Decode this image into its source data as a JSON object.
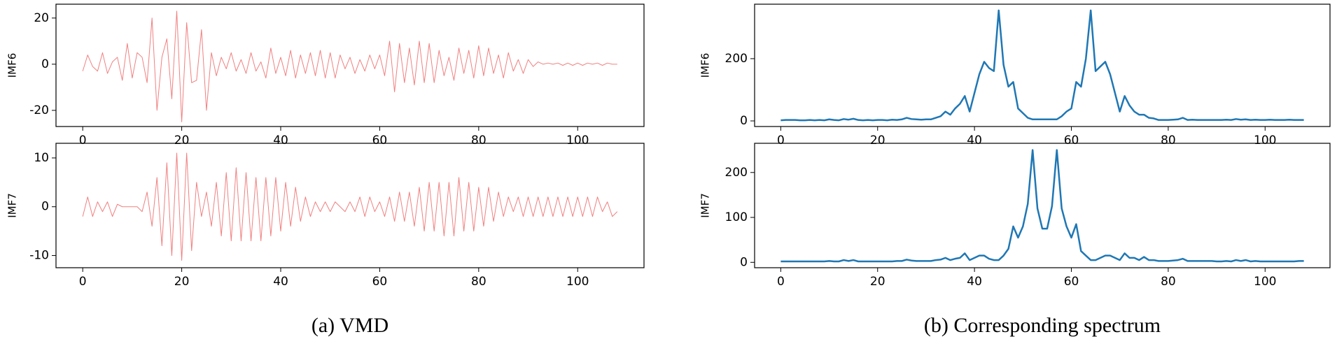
{
  "captions": [
    "(a) VMD",
    "(b) Corresponding spectrum"
  ],
  "chart_data": [
    {
      "type": "line",
      "ylabel": "IMF6",
      "color": "#f08080",
      "x": [
        0,
        1,
        2,
        3,
        4,
        5,
        6,
        7,
        8,
        9,
        10,
        11,
        12,
        13,
        14,
        15,
        16,
        17,
        18,
        19,
        20,
        21,
        22,
        23,
        24,
        25,
        26,
        27,
        28,
        29,
        30,
        31,
        32,
        33,
        34,
        35,
        36,
        37,
        38,
        39,
        40,
        41,
        42,
        43,
        44,
        45,
        46,
        47,
        48,
        49,
        50,
        51,
        52,
        53,
        54,
        55,
        56,
        57,
        58,
        59,
        60,
        61,
        62,
        63,
        64,
        65,
        66,
        67,
        68,
        69,
        70,
        71,
        72,
        73,
        74,
        75,
        76,
        77,
        78,
        79,
        80,
        81,
        82,
        83,
        84,
        85,
        86,
        87,
        88,
        89,
        90,
        91,
        92,
        93,
        94,
        95,
        96,
        97,
        98,
        99,
        100,
        101,
        102,
        103,
        104,
        105,
        106,
        107,
        108
      ],
      "values": [
        -3,
        4,
        -1,
        -3,
        5,
        -4,
        1,
        3,
        -7,
        9,
        -6,
        5,
        3,
        -8,
        20,
        -20,
        3,
        11,
        -15,
        23,
        -25,
        18,
        -8,
        -7,
        15,
        -20,
        5,
        -5,
        3,
        -2,
        5,
        -3,
        2,
        -4,
        5,
        -3,
        1,
        -6,
        7,
        -4,
        3,
        -5,
        6,
        -6,
        4,
        -4,
        5,
        -5,
        6,
        -6,
        5,
        -6,
        4,
        -2,
        3,
        -4,
        2,
        -3,
        4,
        -2,
        4,
        -5,
        10,
        -12,
        9,
        -8,
        7,
        -9,
        10,
        -8,
        9,
        -8,
        6,
        -5,
        3,
        -7,
        7,
        -4,
        6,
        -6,
        8,
        -5,
        7,
        -4,
        4,
        -6,
        5,
        -3,
        2,
        -4,
        2,
        -1,
        1,
        0,
        0.5,
        0,
        0.5,
        -0.5,
        0.5,
        -0.5,
        0.5,
        -0.5,
        0.5,
        0,
        0.5,
        -0.5,
        0.5,
        0,
        0
      ],
      "xlim": [
        -5.4,
        113.4
      ],
      "xticks": [
        0,
        20,
        40,
        60,
        80,
        100
      ],
      "ylim": [
        -27,
        26
      ],
      "yticks": [
        -20,
        0,
        20
      ]
    },
    {
      "type": "line",
      "ylabel": "IMF7",
      "color": "#f08080",
      "x": [
        0,
        1,
        2,
        3,
        4,
        5,
        6,
        7,
        8,
        9,
        10,
        11,
        12,
        13,
        14,
        15,
        16,
        17,
        18,
        19,
        20,
        21,
        22,
        23,
        24,
        25,
        26,
        27,
        28,
        29,
        30,
        31,
        32,
        33,
        34,
        35,
        36,
        37,
        38,
        39,
        40,
        41,
        42,
        43,
        44,
        45,
        46,
        47,
        48,
        49,
        50,
        51,
        52,
        53,
        54,
        55,
        56,
        57,
        58,
        59,
        60,
        61,
        62,
        63,
        64,
        65,
        66,
        67,
        68,
        69,
        70,
        71,
        72,
        73,
        74,
        75,
        76,
        77,
        78,
        79,
        80,
        81,
        82,
        83,
        84,
        85,
        86,
        87,
        88,
        89,
        90,
        91,
        92,
        93,
        94,
        95,
        96,
        97,
        98,
        99,
        100,
        101,
        102,
        103,
        104,
        105,
        106,
        107,
        108
      ],
      "values": [
        -2,
        2,
        -2,
        1,
        -1,
        1,
        -2,
        0.5,
        0,
        0,
        0,
        0,
        -1,
        3,
        -4,
        6,
        -8,
        9,
        -10,
        11,
        -11,
        11,
        -9,
        5,
        -2,
        3,
        -4,
        5,
        -6,
        7,
        -7,
        8,
        -7,
        7,
        -7,
        6,
        -7,
        6,
        -6,
        6,
        -5,
        5,
        -4,
        4,
        -3,
        2,
        -2,
        1,
        -1,
        1,
        -1,
        1,
        0,
        -1,
        1,
        -1,
        2,
        -2,
        2,
        -1,
        1,
        -2,
        2,
        -3,
        3,
        -3,
        3,
        -4,
        4,
        -5,
        5,
        -5,
        5,
        -6,
        5,
        -6,
        6,
        -5,
        5,
        -5,
        4,
        -4,
        4,
        -3,
        3,
        -2,
        2,
        -1,
        2,
        -2,
        2,
        -2,
        2,
        -2,
        2,
        -2,
        2,
        -2,
        2,
        -2,
        2,
        -2,
        2,
        -2,
        2,
        -1,
        1,
        -2,
        -1
      ],
      "xlim": [
        -5.4,
        113.4
      ],
      "xticks": [
        0,
        20,
        40,
        60,
        80,
        100
      ],
      "ylim": [
        -12.5,
        13
      ],
      "yticks": [
        -10,
        0,
        10
      ]
    },
    {
      "type": "line",
      "ylabel": "IMF6",
      "color": "#1f77b4",
      "x": [
        0,
        1,
        2,
        3,
        4,
        5,
        6,
        7,
        8,
        9,
        10,
        11,
        12,
        13,
        14,
        15,
        16,
        17,
        18,
        19,
        20,
        21,
        22,
        23,
        24,
        25,
        26,
        27,
        28,
        29,
        30,
        31,
        32,
        33,
        34,
        35,
        36,
        37,
        38,
        39,
        40,
        41,
        42,
        43,
        44,
        45,
        46,
        47,
        48,
        49,
        50,
        51,
        52,
        53,
        54,
        55,
        56,
        57,
        58,
        59,
        60,
        61,
        62,
        63,
        64,
        65,
        66,
        67,
        68,
        69,
        70,
        71,
        72,
        73,
        74,
        75,
        76,
        77,
        78,
        79,
        80,
        81,
        82,
        83,
        84,
        85,
        86,
        87,
        88,
        89,
        90,
        91,
        92,
        93,
        94,
        95,
        96,
        97,
        98,
        99,
        100,
        101,
        102,
        103,
        104,
        105,
        106,
        107,
        108
      ],
      "values": [
        2,
        3,
        3,
        3,
        2,
        2,
        3,
        2,
        3,
        2,
        5,
        3,
        2,
        6,
        4,
        7,
        3,
        2,
        3,
        2,
        3,
        3,
        2,
        4,
        3,
        5,
        10,
        6,
        5,
        4,
        5,
        5,
        10,
        15,
        30,
        20,
        40,
        55,
        80,
        30,
        90,
        150,
        190,
        170,
        160,
        355,
        180,
        110,
        125,
        40,
        25,
        10,
        5,
        5,
        5,
        5,
        5,
        5,
        15,
        30,
        40,
        125,
        110,
        200,
        355,
        160,
        175,
        190,
        150,
        90,
        30,
        80,
        50,
        30,
        20,
        20,
        10,
        8,
        3,
        3,
        3,
        4,
        5,
        10,
        3,
        4,
        3,
        3,
        3,
        3,
        3,
        3,
        4,
        3,
        6,
        4,
        5,
        3,
        4,
        3,
        3,
        4,
        3,
        3,
        3,
        4,
        3,
        3,
        3
      ],
      "xlim": [
        -5.4,
        113.4
      ],
      "xticks": [
        0,
        20,
        40,
        60,
        80,
        100
      ],
      "ylim": [
        -18,
        375
      ],
      "yticks": [
        0,
        200
      ]
    },
    {
      "type": "line",
      "ylabel": "IMF7",
      "color": "#1f77b4",
      "x": [
        0,
        1,
        2,
        3,
        4,
        5,
        6,
        7,
        8,
        9,
        10,
        11,
        12,
        13,
        14,
        15,
        16,
        17,
        18,
        19,
        20,
        21,
        22,
        23,
        24,
        25,
        26,
        27,
        28,
        29,
        30,
        31,
        32,
        33,
        34,
        35,
        36,
        37,
        38,
        39,
        40,
        41,
        42,
        43,
        44,
        45,
        46,
        47,
        48,
        49,
        50,
        51,
        52,
        53,
        54,
        55,
        56,
        57,
        58,
        59,
        60,
        61,
        62,
        63,
        64,
        65,
        66,
        67,
        68,
        69,
        70,
        71,
        72,
        73,
        74,
        75,
        76,
        77,
        78,
        79,
        80,
        81,
        82,
        83,
        84,
        85,
        86,
        87,
        88,
        89,
        90,
        91,
        92,
        93,
        94,
        95,
        96,
        97,
        98,
        99,
        100,
        101,
        102,
        103,
        104,
        105,
        106,
        107,
        108
      ],
      "values": [
        2,
        2,
        2,
        2,
        2,
        2,
        2,
        2,
        2,
        2,
        3,
        2,
        2,
        5,
        3,
        5,
        2,
        2,
        2,
        2,
        2,
        2,
        2,
        2,
        3,
        3,
        6,
        4,
        3,
        3,
        3,
        3,
        5,
        6,
        10,
        5,
        8,
        10,
        20,
        5,
        10,
        15,
        15,
        8,
        5,
        5,
        15,
        30,
        80,
        55,
        80,
        130,
        250,
        120,
        75,
        75,
        125,
        250,
        120,
        80,
        55,
        85,
        25,
        15,
        5,
        5,
        10,
        15,
        15,
        10,
        5,
        20,
        10,
        10,
        5,
        12,
        5,
        5,
        3,
        3,
        3,
        4,
        5,
        8,
        3,
        3,
        3,
        3,
        3,
        3,
        2,
        2,
        3,
        2,
        5,
        3,
        5,
        2,
        3,
        2,
        2,
        2,
        2,
        2,
        2,
        2,
        2,
        3,
        3
      ],
      "xlim": [
        -5.4,
        113.4
      ],
      "xticks": [
        0,
        20,
        40,
        60,
        80,
        100
      ],
      "ylim": [
        -12,
        265
      ],
      "yticks": [
        0,
        100,
        200
      ]
    }
  ]
}
